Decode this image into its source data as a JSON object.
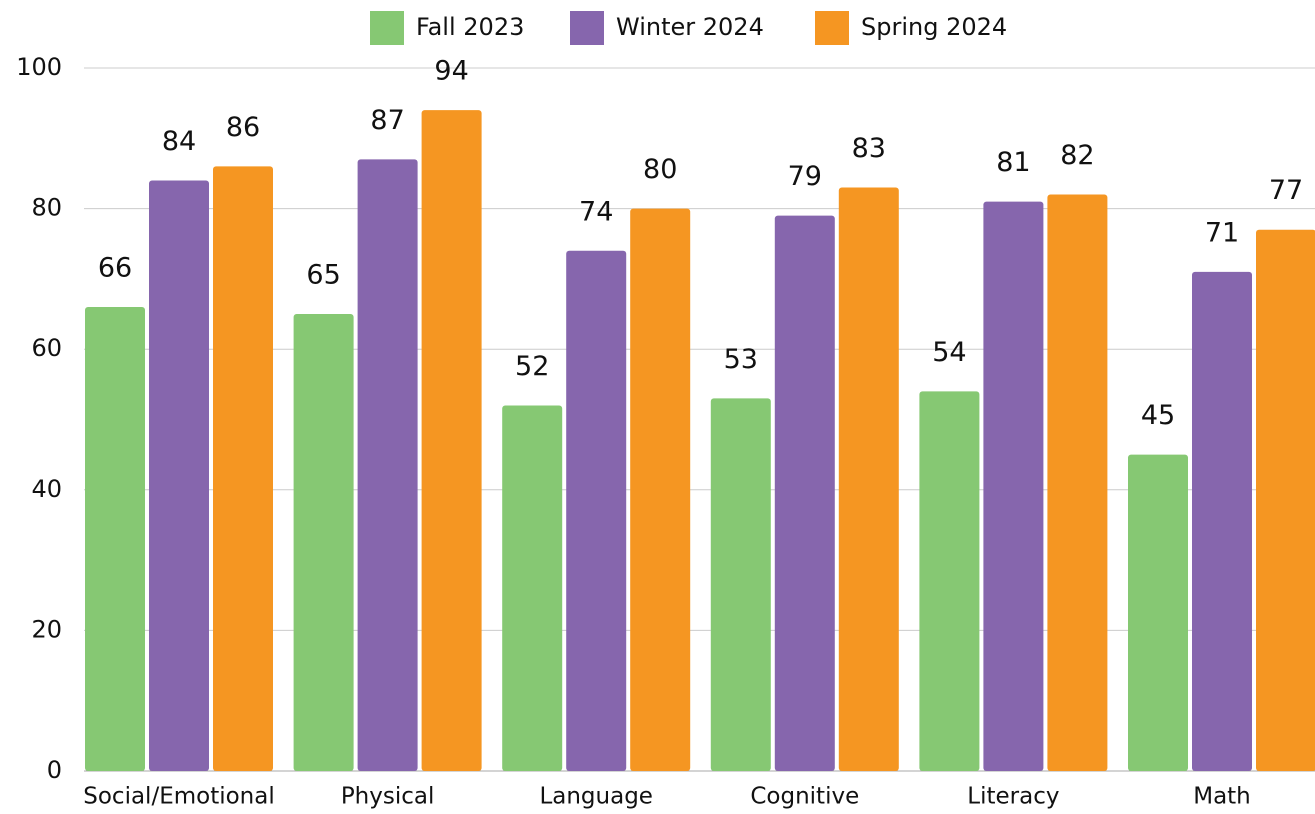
{
  "chart_data": {
    "type": "bar",
    "categories": [
      "Social/Emotional",
      "Physical",
      "Language",
      "Cognitive",
      "Literacy",
      "Math"
    ],
    "series": [
      {
        "name": "Fall 2023",
        "color": "#86c873",
        "values": [
          66,
          65,
          52,
          53,
          54,
          45
        ]
      },
      {
        "name": "Winter 2024",
        "color": "#8666ad",
        "values": [
          84,
          87,
          74,
          79,
          81,
          71
        ]
      },
      {
        "name": "Spring 2024",
        "color": "#f59622",
        "values": [
          86,
          94,
          80,
          83,
          82,
          77
        ]
      }
    ],
    "ylim": [
      0,
      100
    ],
    "yticks": [
      0,
      20,
      40,
      60,
      80,
      100
    ],
    "grid": true,
    "legend": "top"
  }
}
